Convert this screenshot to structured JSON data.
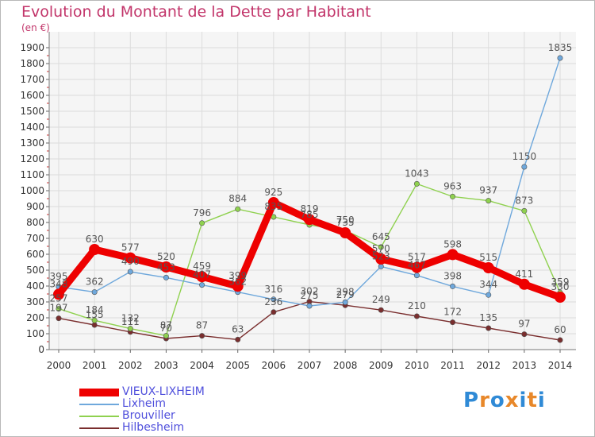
{
  "title": "Evolution du Montant de la Dette par Habitant",
  "subtitle": "(en €)",
  "logo": {
    "text": "Proxiti",
    "letter_colors": [
      "#2f8ad6",
      "#e8882a",
      "#2f8ad6",
      "#e8882a",
      "#2f8ad6",
      "#e8882a",
      "#2f8ad6"
    ]
  },
  "chart_data": {
    "type": "line",
    "x": [
      "2000",
      "2001",
      "2002",
      "2003",
      "2004",
      "2005",
      "2006",
      "2007",
      "2008",
      "2009",
      "2010",
      "2011",
      "2012",
      "2013",
      "2014"
    ],
    "ylim": [
      0,
      1900
    ],
    "yticks": [
      "0",
      "100",
      "200",
      "300",
      "400",
      "500",
      "600",
      "700",
      "800",
      "900",
      "1000",
      "1100",
      "1200",
      "1300",
      "1400",
      "1500",
      "1600",
      "1700",
      "1800",
      "1900"
    ],
    "grid": true,
    "legend_position": "bottom-left",
    "series": [
      {
        "name": "VIEUX-LIXHEIM",
        "color": "#ee0000",
        "emphasis": true,
        "values": [
          348,
          630,
          577,
          520,
          459,
          399,
          925,
          819,
          735,
          570,
          517,
          598,
          515,
          411,
          330
        ]
      },
      {
        "name": "Lixheim",
        "color": "#6fa8dc",
        "values": [
          395,
          362,
          490,
          453,
          407,
          362,
          316,
          275,
          298,
          523,
          467,
          398,
          344,
          1150,
          1835
        ]
      },
      {
        "name": "Brouviller",
        "color": "#8fd14f",
        "values": [
          257,
          184,
          132,
          87,
          796,
          884,
          835,
          785,
          750,
          645,
          1043,
          963,
          937,
          873,
          359
        ]
      },
      {
        "name": "Hilbesheim",
        "color": "#7a2e2e",
        "values": [
          197,
          155,
          111,
          70,
          87,
          63,
          236,
          302,
          279,
          249,
          210,
          172,
          135,
          97,
          60
        ]
      }
    ],
    "data_labels": [
      [
        "348",
        "630",
        "577",
        "520",
        "459",
        "399",
        "925",
        "819",
        "735",
        "570",
        "517",
        "598",
        "515",
        "411",
        "330"
      ],
      [
        "395",
        "362",
        "490",
        "453",
        "407",
        "362",
        "316",
        "275",
        "298",
        "523",
        "467",
        "398",
        "344",
        "1150",
        "1835"
      ],
      [
        "257",
        "184",
        "132",
        "87",
        "796",
        "884",
        "835",
        "785",
        "750",
        "645",
        "1043",
        "963",
        "937",
        "873",
        "359"
      ],
      [
        "197",
        "155",
        "111",
        "70",
        "87",
        "63",
        "236",
        "302",
        "279",
        "249",
        "210",
        "172",
        "135",
        "97",
        "60"
      ]
    ]
  }
}
